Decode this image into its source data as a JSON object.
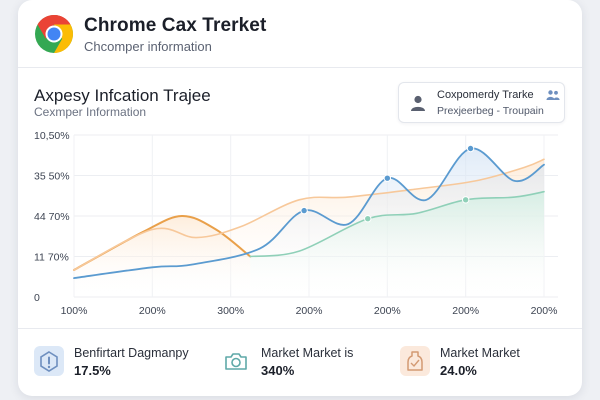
{
  "header": {
    "title": "Chrome Cax Trerket",
    "subtitle": "Chcomper information"
  },
  "section": {
    "title": "Axpesy Infcation Trajee",
    "subtitle": "Cexmper Information"
  },
  "info_box": {
    "title": "Coxpomerdy Trarke",
    "subtitle": "Prexjeerbeg - Troupain"
  },
  "chart_data": {
    "type": "line",
    "y_tick_labels": [
      "10,50%",
      "35 50%",
      "44 70%",
      "11 70%",
      "0"
    ],
    "x_tick_labels": [
      "100%",
      "200%",
      "300%",
      "200%",
      "200%",
      "200%",
      "200%"
    ],
    "grid": true,
    "series": [
      {
        "color": "#e9a04a",
        "points": [
          [
            0,
            10
          ],
          [
            0.7,
            24
          ],
          [
            1.1,
            30
          ],
          [
            1.45,
            25
          ],
          [
            1.8,
            15
          ]
        ]
      },
      {
        "color": "#f7c89a",
        "points": [
          [
            0,
            10
          ],
          [
            0.8,
            25
          ],
          [
            1.25,
            22
          ],
          [
            1.7,
            26
          ],
          [
            2.3,
            36
          ],
          [
            2.8,
            37
          ],
          [
            3.5,
            40
          ],
          [
            4.1,
            43
          ],
          [
            4.6,
            48
          ],
          [
            4.8,
            51
          ]
        ]
      },
      {
        "color": "#5b9bd0",
        "points": [
          [
            0,
            7
          ],
          [
            0.8,
            11
          ],
          [
            1.2,
            12
          ],
          [
            1.9,
            18
          ],
          [
            2.35,
            32
          ],
          [
            2.8,
            27
          ],
          [
            3.2,
            44
          ],
          [
            3.6,
            36
          ],
          [
            4.05,
            55
          ],
          [
            4.5,
            43
          ],
          [
            4.8,
            49
          ]
        ]
      },
      {
        "color": "#8fd0b8",
        "points": [
          [
            1.8,
            15
          ],
          [
            2.3,
            17
          ],
          [
            3.0,
            29
          ],
          [
            3.5,
            31
          ],
          [
            4.0,
            36
          ],
          [
            4.5,
            37
          ],
          [
            4.8,
            39
          ]
        ]
      }
    ],
    "markers": [
      {
        "series": 2,
        "point": 4
      },
      {
        "series": 2,
        "point": 6
      },
      {
        "series": 2,
        "point": 8
      },
      {
        "series": 3,
        "point": 2
      },
      {
        "series": 3,
        "point": 4
      }
    ],
    "xlim": [
      0,
      4.8
    ],
    "ylim": [
      0,
      60
    ]
  },
  "stats": [
    {
      "label": "Benfirtart Dagmanpy",
      "value": "17.5%",
      "icon": "alert-icon",
      "color": "#dce8f7"
    },
    {
      "label": "Market Market is",
      "value": "340%",
      "icon": "camera-icon",
      "color": "#ffffff"
    },
    {
      "label": "Market Market",
      "value": "24.0%",
      "icon": "bottle-icon",
      "color": "#fbe9dc"
    }
  ]
}
